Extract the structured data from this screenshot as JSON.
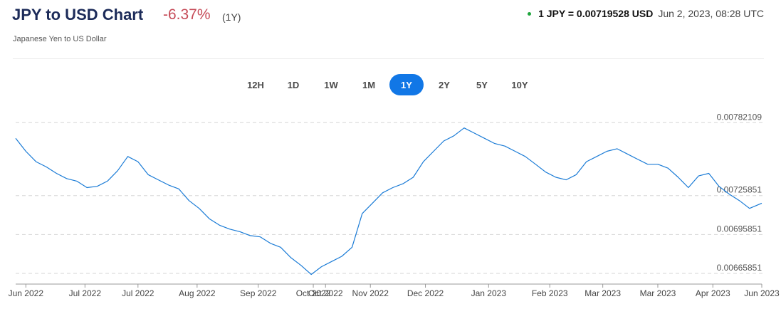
{
  "header": {
    "title": "JPY to USD Chart",
    "change": "-6.37%",
    "period": "(1Y)",
    "subtitle": "Japanese Yen to US Dollar",
    "rate": "1 JPY = 0.00719528 USD",
    "timestamp": "Jun 2, 2023, 08:28 UTC",
    "colors": {
      "title": "#1c2b59",
      "change": "#c54a57",
      "live_dot": "#1fa53d",
      "accent": "#1177e6"
    }
  },
  "periods": {
    "items": [
      "12H",
      "1D",
      "1W",
      "1M",
      "1Y",
      "2Y",
      "5Y",
      "10Y"
    ],
    "selected": "1Y"
  },
  "chart_data": {
    "type": "line",
    "title": "",
    "xlabel": "",
    "ylabel": "",
    "grid": true,
    "line_color": "#1a7bd6",
    "y_ticks": [
      0.00782109,
      0.00725851,
      0.00695851,
      0.00665851
    ],
    "y_tick_labels": [
      "0.00782109",
      "0.00725851",
      "0.00695851",
      "0.00665851"
    ],
    "ylim": [
      0.00662,
      0.00785
    ],
    "xlim": [
      "2022-06-01",
      "2023-06-02"
    ],
    "x_ticks": [
      {
        "label": "Jun 2022",
        "date": "2022-06-06"
      },
      {
        "label": "Jul 2022",
        "date": "2022-07-05"
      },
      {
        "label": "Jul 2022",
        "date": "2022-07-31"
      },
      {
        "label": "Aug 2022",
        "date": "2022-08-29"
      },
      {
        "label": "Sep 2022",
        "date": "2022-09-28"
      },
      {
        "label": "Oct 2022",
        "date": "2022-10-25"
      },
      {
        "label": "Oct 2022",
        "date": "2022-10-31"
      },
      {
        "label": "Nov 2022",
        "date": "2022-11-22"
      },
      {
        "label": "Dec 2022",
        "date": "2022-12-19"
      },
      {
        "label": "Jan 2023",
        "date": "2023-01-19"
      },
      {
        "label": "Feb 2023",
        "date": "2023-02-18"
      },
      {
        "label": "Mar 2023",
        "date": "2023-03-16"
      },
      {
        "label": "Mar 2023",
        "date": "2023-04-12"
      },
      {
        "label": "Apr 2023",
        "date": "2023-05-09"
      },
      {
        "label": "Jun 2023",
        "date": "2023-06-02"
      }
    ],
    "series": [
      {
        "x": [
          "2022-06-01",
          "2022-06-06",
          "2022-06-11",
          "2022-06-16",
          "2022-06-21",
          "2022-06-26",
          "2022-07-01",
          "2022-07-06",
          "2022-07-11",
          "2022-07-16",
          "2022-07-21",
          "2022-07-26",
          "2022-07-31",
          "2022-08-05",
          "2022-08-10",
          "2022-08-15",
          "2022-08-20",
          "2022-08-25",
          "2022-08-30",
          "2022-09-04",
          "2022-09-09",
          "2022-09-14",
          "2022-09-19",
          "2022-09-24",
          "2022-09-29",
          "2022-10-04",
          "2022-10-09",
          "2022-10-14",
          "2022-10-19",
          "2022-10-24",
          "2022-10-29",
          "2022-11-03",
          "2022-11-08",
          "2022-11-13",
          "2022-11-18",
          "2022-11-23",
          "2022-11-28",
          "2022-12-03",
          "2022-12-08",
          "2022-12-13",
          "2022-12-18",
          "2022-12-23",
          "2022-12-28",
          "2023-01-02",
          "2023-01-07",
          "2023-01-12",
          "2023-01-17",
          "2023-01-22",
          "2023-01-27",
          "2023-02-01",
          "2023-02-06",
          "2023-02-11",
          "2023-02-16",
          "2023-02-21",
          "2023-02-26",
          "2023-03-03",
          "2023-03-08",
          "2023-03-13",
          "2023-03-18",
          "2023-03-23",
          "2023-03-28",
          "2023-04-02",
          "2023-04-07",
          "2023-04-12",
          "2023-04-17",
          "2023-04-22",
          "2023-04-27",
          "2023-05-02",
          "2023-05-07",
          "2023-05-12",
          "2023-05-17",
          "2023-05-22",
          "2023-05-27",
          "2023-06-02"
        ],
        "values": [
          0.0077,
          0.0076,
          0.00752,
          0.00748,
          0.00743,
          0.00739,
          0.00737,
          0.00732,
          0.00733,
          0.00737,
          0.00745,
          0.00756,
          0.00752,
          0.00742,
          0.00738,
          0.00734,
          0.00731,
          0.00722,
          0.00716,
          0.00708,
          0.00703,
          0.007,
          0.00698,
          0.00695,
          0.00694,
          0.00689,
          0.00686,
          0.00678,
          0.00672,
          0.00665,
          0.00671,
          0.00675,
          0.00679,
          0.00686,
          0.00712,
          0.0072,
          0.00728,
          0.00732,
          0.00735,
          0.0074,
          0.00752,
          0.0076,
          0.00768,
          0.00772,
          0.00778,
          0.00774,
          0.0077,
          0.00766,
          0.00764,
          0.0076,
          0.00756,
          0.0075,
          0.00744,
          0.0074,
          0.00738,
          0.00742,
          0.00752,
          0.00756,
          0.0076,
          0.00762,
          0.00758,
          0.00754,
          0.0075,
          0.0075,
          0.00747,
          0.0074,
          0.00732,
          0.00741,
          0.00743,
          0.00733,
          0.00727,
          0.00722,
          0.00716,
          0.0072
        ]
      }
    ]
  }
}
